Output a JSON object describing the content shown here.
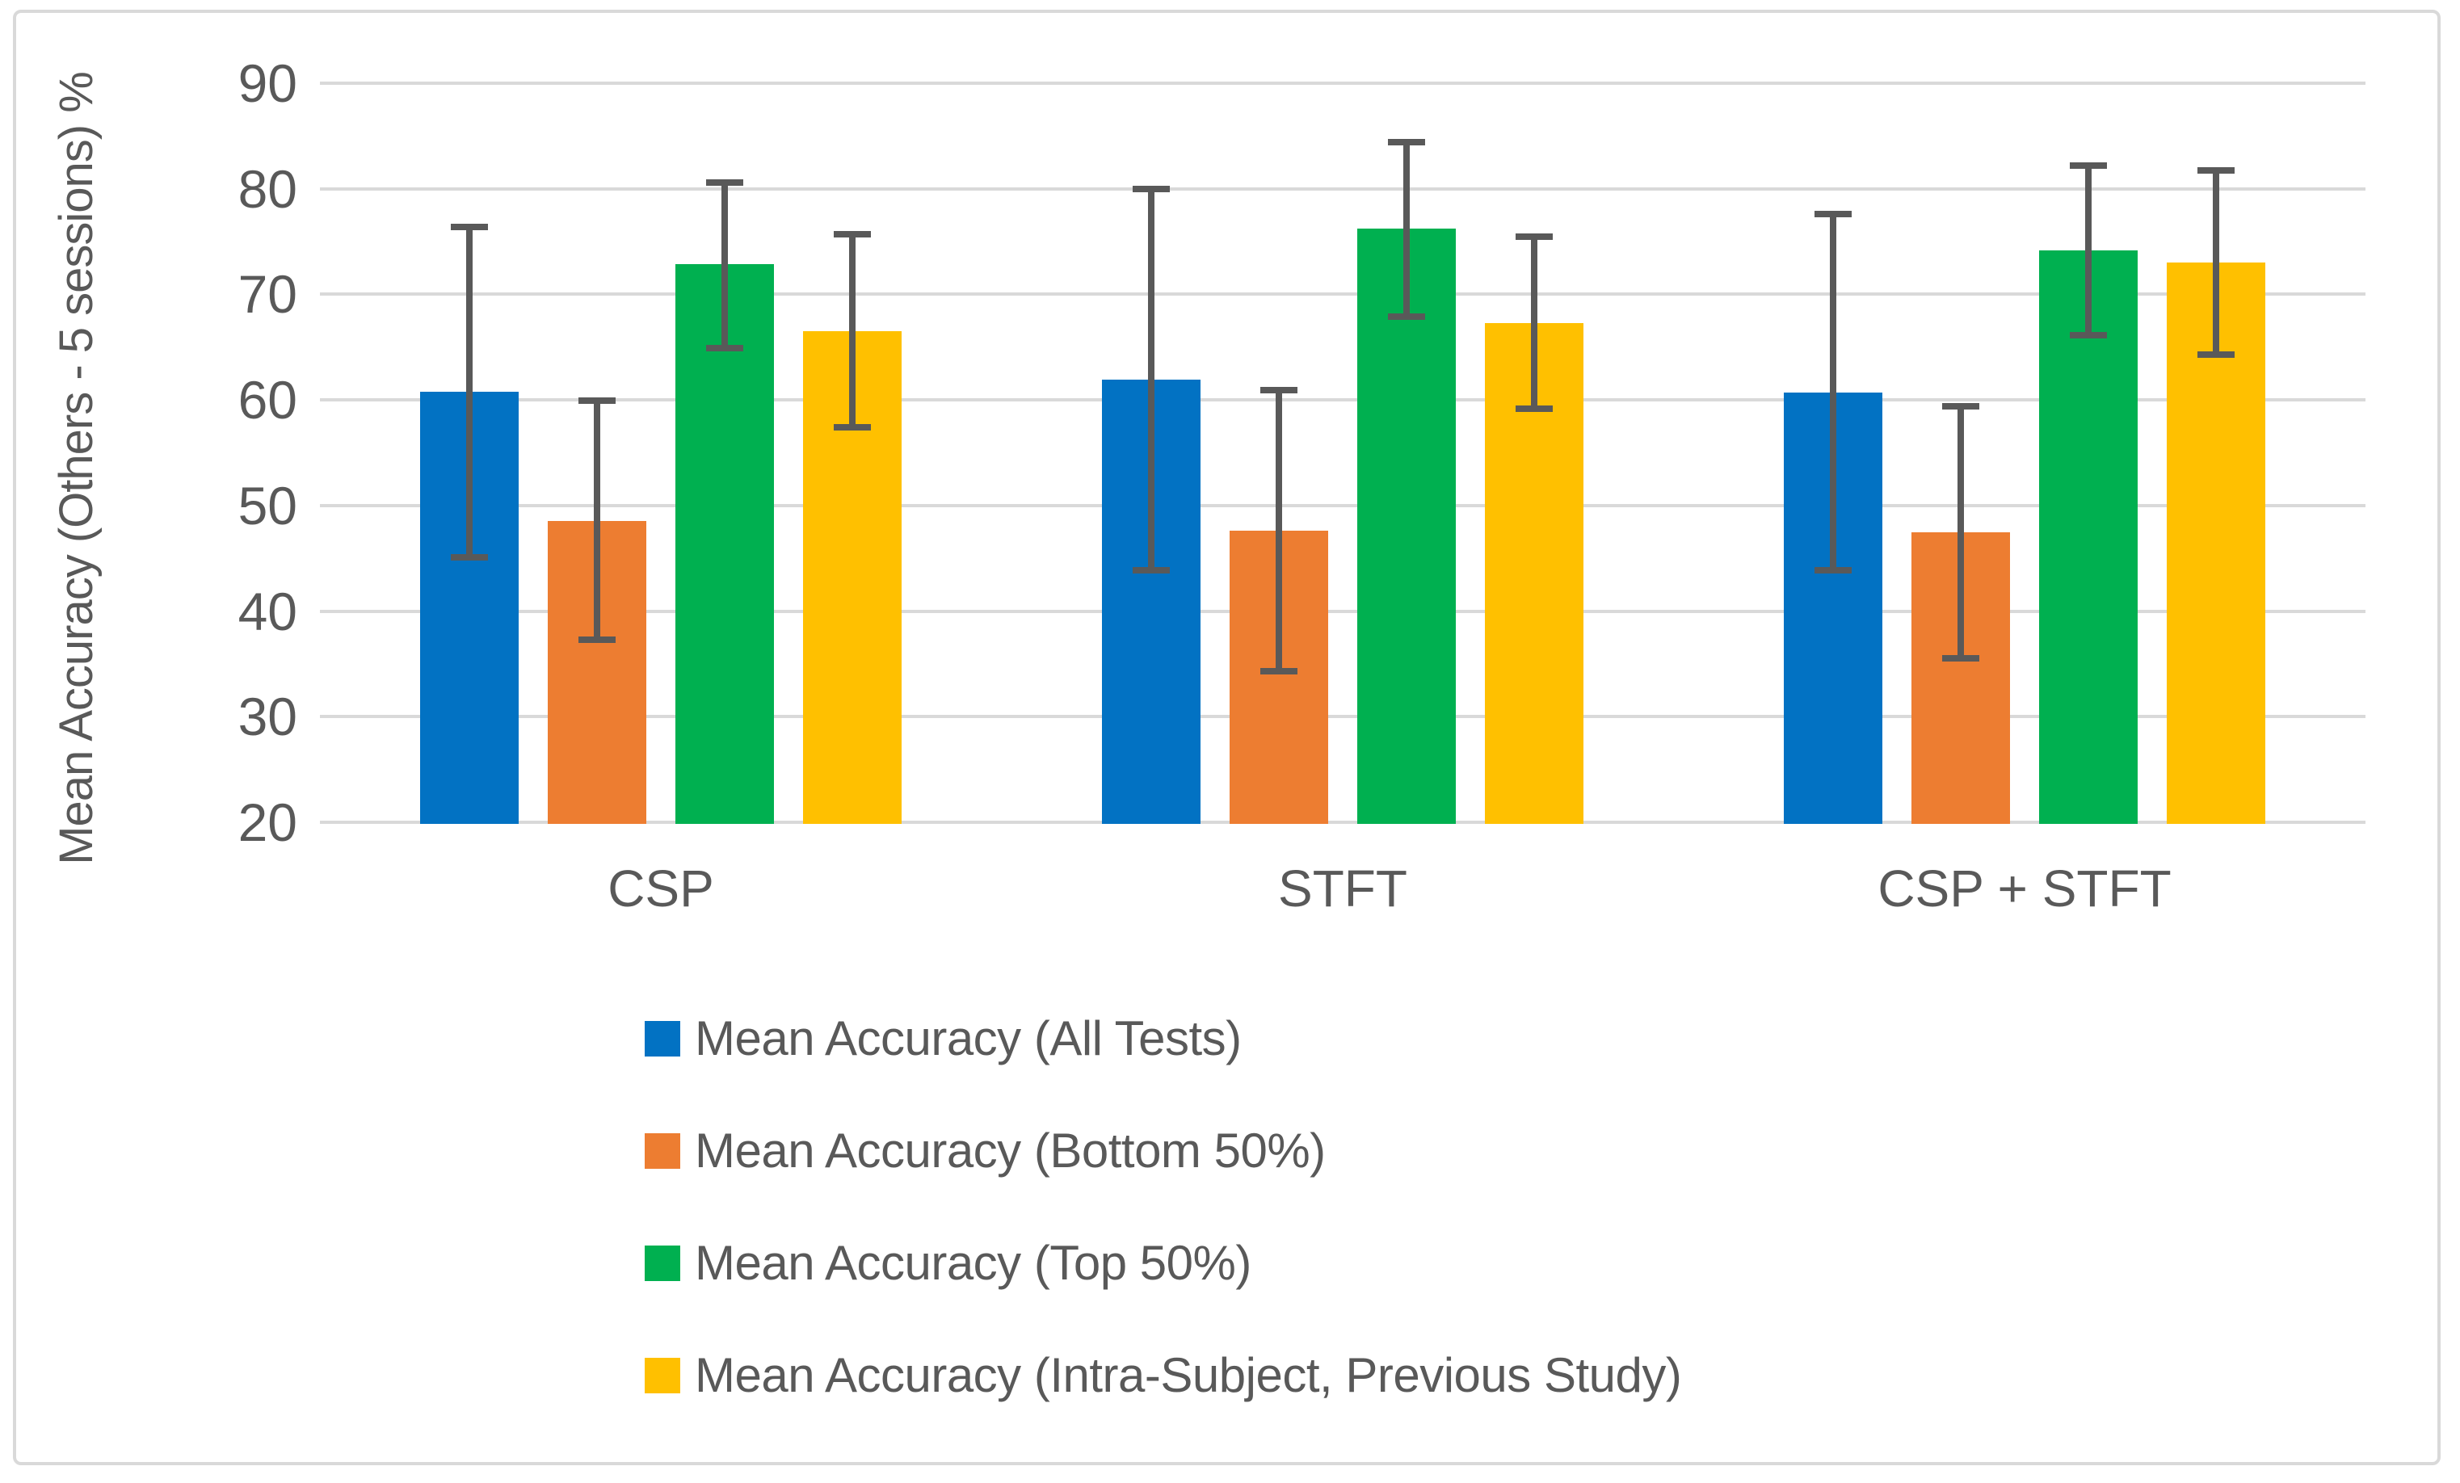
{
  "chart_data": {
    "type": "bar",
    "title": "",
    "xlabel": "",
    "ylabel": "Mean Accuracy (Others - 5 sessions) %",
    "ylim": [
      20,
      90
    ],
    "yticks": [
      90,
      80,
      70,
      60,
      50,
      40,
      30,
      20
    ],
    "grid": true,
    "legend_position": "bottom-left",
    "categories": [
      "CSP",
      "STFT",
      "CSP + STFT"
    ],
    "series": [
      {
        "name": "Mean Accuracy (All Tests)",
        "color": "#0272C3",
        "values": [
          60.8,
          61.9,
          60.7
        ],
        "error_low": [
          45.1,
          43.9,
          43.9
        ],
        "error_high": [
          76.4,
          80.0,
          77.6
        ]
      },
      {
        "name": "Mean Accuracy (Bottom 50%)",
        "color": "#ED7D31",
        "values": [
          48.5,
          47.6,
          47.5
        ],
        "error_low": [
          37.3,
          34.3,
          35.5
        ],
        "error_high": [
          59.9,
          60.9,
          59.4
        ]
      },
      {
        "name": "Mean Accuracy (Top 50%)",
        "color": "#00B050",
        "values": [
          72.9,
          76.2,
          74.2
        ],
        "error_low": [
          64.9,
          67.9,
          66.1
        ],
        "error_high": [
          80.6,
          84.4,
          82.2
        ]
      },
      {
        "name": "Mean Accuracy (Intra-Subject, Previous Study)",
        "color": "#FFC000",
        "values": [
          66.5,
          67.3,
          73.0
        ],
        "error_low": [
          57.4,
          59.2,
          64.3
        ],
        "error_high": [
          75.7,
          75.5,
          81.7
        ]
      }
    ],
    "colors": {
      "gridline": "#D9D9D9",
      "text": "#595959",
      "error_bar": "#595959",
      "frame_border": "#D9D9D9",
      "background": "#FFFFFF"
    }
  }
}
